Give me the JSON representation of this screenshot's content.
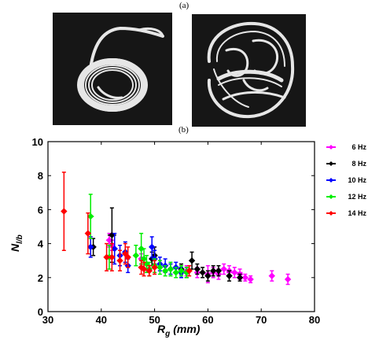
{
  "figure": {
    "panel_a_label": "(a)",
    "panel_b_label": "(b)"
  },
  "photos": [
    {
      "name": "coiled-tube-photo",
      "background": "#161616",
      "tube_color": "#e6e6e6"
    },
    {
      "name": "looped-tube-photo",
      "background": "#161616",
      "tube_color": "#e6e6e6"
    }
  ],
  "chart_data": {
    "type": "scatter",
    "xlabel_main": "R",
    "xlabel_sub": "g",
    "xlabel_unit": "(mm)",
    "ylabel_main": "N",
    "ylabel_sub": "l/b",
    "xlim": [
      30,
      80
    ],
    "ylim": [
      0,
      10
    ],
    "xticks": [
      30,
      40,
      50,
      60,
      70,
      80
    ],
    "yticks": [
      0,
      2,
      4,
      6,
      8,
      10
    ],
    "grid": false,
    "legend_position": "right",
    "series": [
      {
        "name": "6 Hz",
        "color": "#ff00ff",
        "marker": "diamond",
        "points": [
          [
            41.5,
            4.2,
            0.6,
            0.4
          ],
          [
            42,
            3.9,
            0.5,
            0.3
          ],
          [
            47.5,
            3.1,
            0.4,
            0.3
          ],
          [
            56,
            2.4,
            0.5,
            0.3
          ],
          [
            58,
            2.3,
            0.3,
            0.3
          ],
          [
            60,
            2.2,
            0.3,
            0.5
          ],
          [
            61,
            2.3,
            0.3,
            0.3
          ],
          [
            62,
            2.2,
            0.4,
            0.3
          ],
          [
            63,
            2.5,
            0.4,
            0.3
          ],
          [
            64,
            2.4,
            0.4,
            0.3
          ],
          [
            65,
            2.3,
            1.5,
            0.3
          ],
          [
            66,
            2.2,
            0.3,
            0.3
          ],
          [
            67,
            2.0,
            0.3,
            0.2
          ],
          [
            68,
            1.9,
            0.3,
            0.2
          ],
          [
            72,
            2.1,
            0.3,
            0.3
          ],
          [
            75,
            1.9,
            0.3,
            0.3
          ]
        ]
      },
      {
        "name": "8 Hz",
        "color": "#000000",
        "marker": "diamond",
        "points": [
          [
            38.5,
            3.8,
            0.5,
            0.5
          ],
          [
            42,
            4.5,
            0.8,
            1.6
          ],
          [
            49.5,
            3.1,
            0.5,
            0.4
          ],
          [
            50,
            3.3,
            0.5,
            0.5
          ],
          [
            55,
            2.5,
            0.4,
            0.3
          ],
          [
            56,
            2.3,
            0.3,
            0.3
          ],
          [
            57,
            3.0,
            0.4,
            0.5
          ],
          [
            58,
            2.5,
            0.5,
            0.3
          ],
          [
            59,
            2.3,
            0.3,
            0.3
          ],
          [
            60,
            2.1,
            0.3,
            0.3
          ],
          [
            61,
            2.4,
            0.3,
            0.3
          ],
          [
            62,
            2.4,
            0.3,
            0.3
          ],
          [
            64,
            2.1,
            0.3,
            0.3
          ],
          [
            66,
            2.0,
            0.3,
            0.2
          ]
        ]
      },
      {
        "name": "10 Hz",
        "color": "#0000ff",
        "marker": "diamond",
        "points": [
          [
            38,
            3.8,
            0.5,
            0.6
          ],
          [
            42.5,
            3.7,
            0.5,
            0.9
          ],
          [
            43.5,
            3.3,
            0.4,
            0.6
          ],
          [
            44.5,
            3.5,
            0.5,
            0.6
          ],
          [
            45,
            2.7,
            0.4,
            0.4
          ],
          [
            49.5,
            3.8,
            0.4,
            0.6
          ],
          [
            50,
            3.1,
            0.4,
            0.5
          ],
          [
            51,
            2.8,
            0.4,
            0.4
          ],
          [
            52,
            2.7,
            0.4,
            0.4
          ],
          [
            53,
            2.5,
            0.4,
            0.3
          ],
          [
            54,
            2.6,
            0.4,
            0.3
          ],
          [
            55,
            2.3,
            0.3,
            0.3
          ]
        ]
      },
      {
        "name": "12 Hz",
        "color": "#00ee00",
        "marker": "diamond",
        "points": [
          [
            38,
            5.6,
            0.6,
            1.3
          ],
          [
            41.5,
            3.2,
            0.5,
            0.7
          ],
          [
            46.5,
            3.3,
            0.5,
            0.6
          ],
          [
            47.5,
            3.7,
            0.5,
            0.9
          ],
          [
            48,
            3.1,
            0.4,
            0.6
          ],
          [
            48.5,
            2.8,
            0.4,
            0.5
          ],
          [
            49,
            2.5,
            0.4,
            0.4
          ],
          [
            50,
            2.7,
            0.4,
            0.4
          ],
          [
            51,
            2.6,
            0.4,
            0.4
          ],
          [
            52,
            2.4,
            0.4,
            0.3
          ],
          [
            53,
            2.5,
            0.4,
            0.4
          ],
          [
            54,
            2.3,
            0.3,
            0.3
          ],
          [
            55,
            2.4,
            0.3,
            0.3
          ],
          [
            56,
            2.3,
            0.3,
            0.3
          ]
        ]
      },
      {
        "name": "14 Hz",
        "color": "#ff0000",
        "marker": "diamond",
        "points": [
          [
            33,
            5.9,
            0.4,
            2.3
          ],
          [
            37.5,
            4.6,
            0.5,
            1.2
          ],
          [
            41,
            3.2,
            0.5,
            0.8
          ],
          [
            42,
            3.2,
            0.5,
            0.8
          ],
          [
            43.5,
            3.0,
            0.5,
            0.6
          ],
          [
            44.5,
            3.4,
            0.4,
            0.6
          ],
          [
            45,
            3.2,
            0.4,
            0.6
          ],
          [
            47.5,
            2.6,
            0.4,
            0.4
          ],
          [
            48,
            2.5,
            0.4,
            0.4
          ],
          [
            49,
            2.4,
            0.3,
            0.3
          ],
          [
            50,
            2.6,
            0.3,
            0.4
          ],
          [
            56.5,
            2.4,
            0.3,
            0.3
          ]
        ]
      }
    ]
  }
}
